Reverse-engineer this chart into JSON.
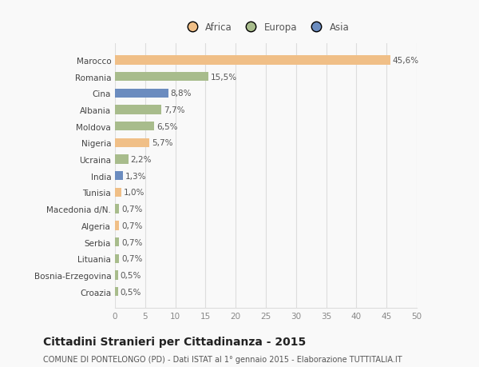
{
  "categories": [
    "Marocco",
    "Romania",
    "Cina",
    "Albania",
    "Moldova",
    "Nigeria",
    "Ucraina",
    "India",
    "Tunisia",
    "Macedonia d/N.",
    "Algeria",
    "Serbia",
    "Lituania",
    "Bosnia-Erzegovina",
    "Croazia"
  ],
  "values": [
    45.6,
    15.5,
    8.8,
    7.7,
    6.5,
    5.7,
    2.2,
    1.3,
    1.0,
    0.7,
    0.7,
    0.7,
    0.7,
    0.5,
    0.5
  ],
  "labels": [
    "45,6%",
    "15,5%",
    "8,8%",
    "7,7%",
    "6,5%",
    "5,7%",
    "2,2%",
    "1,3%",
    "1,0%",
    "0,7%",
    "0,7%",
    "0,7%",
    "0,7%",
    "0,5%",
    "0,5%"
  ],
  "colors": [
    "#f0bf87",
    "#a8bc8c",
    "#6b8cbf",
    "#a8bc8c",
    "#a8bc8c",
    "#f0bf87",
    "#a8bc8c",
    "#6b8cbf",
    "#f0bf87",
    "#a8bc8c",
    "#f0bf87",
    "#a8bc8c",
    "#a8bc8c",
    "#a8bc8c",
    "#a8bc8c"
  ],
  "legend": [
    {
      "label": "Africa",
      "color": "#f0bf87"
    },
    {
      "label": "Europa",
      "color": "#a8bc8c"
    },
    {
      "label": "Asia",
      "color": "#6b8cbf"
    }
  ],
  "xlim": [
    0,
    50
  ],
  "xticks": [
    0,
    5,
    10,
    15,
    20,
    25,
    30,
    35,
    40,
    45,
    50
  ],
  "title": "Cittadini Stranieri per Cittadinanza - 2015",
  "subtitle": "COMUNE DI PONTELONGO (PD) - Dati ISTAT al 1° gennaio 2015 - Elaborazione TUTTITALIA.IT",
  "background_color": "#f9f9f9",
  "grid_color": "#dddddd",
  "bar_height": 0.55,
  "label_fontsize": 7.5,
  "ytick_fontsize": 7.5,
  "xtick_fontsize": 7.5,
  "title_fontsize": 10,
  "subtitle_fontsize": 7.0
}
